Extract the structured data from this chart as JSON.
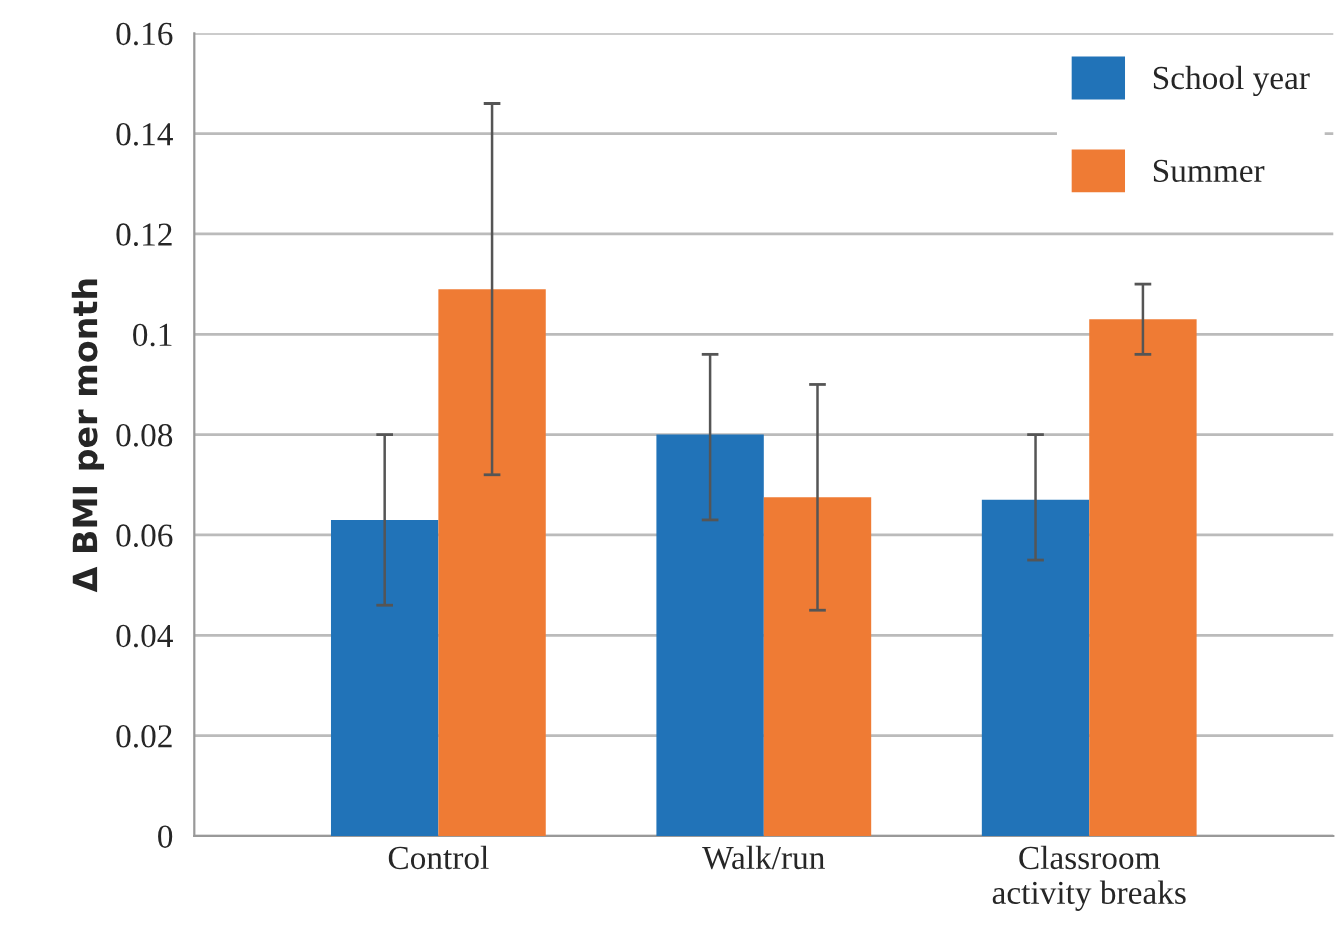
{
  "chart_data": {
    "type": "bar",
    "ylabel": "Δ BMI per month",
    "categories": [
      "Control",
      "Walk/run",
      "Classroom\nactivity breaks"
    ],
    "series": [
      {
        "name": "School year",
        "color": "#2173b8",
        "values": [
          0.063,
          0.08,
          0.067
        ],
        "errors": [
          [
            0.046,
            0.08
          ],
          [
            0.063,
            0.096
          ],
          [
            0.055,
            0.08
          ]
        ]
      },
      {
        "name": "Summer",
        "color": "#ef7b34",
        "values": [
          0.109,
          0.0675,
          0.103
        ],
        "errors": [
          [
            0.072,
            0.146
          ],
          [
            0.045,
            0.09
          ],
          [
            0.096,
            0.11
          ]
        ]
      }
    ],
    "ylim": [
      0,
      0.16
    ],
    "yticks": [
      0,
      0.02,
      0.04,
      0.06,
      0.08,
      0.1,
      0.12,
      0.14,
      0.16
    ],
    "grid": "y",
    "legend": "top right"
  }
}
